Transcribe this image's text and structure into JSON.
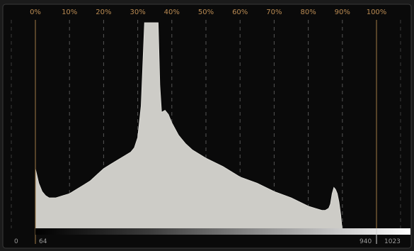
{
  "histogram": {
    "title": "",
    "percent_labels": [
      "0%",
      "10%",
      "20%",
      "30%",
      "40%",
      "50%",
      "60%",
      "70%",
      "80%",
      "90%",
      "100%"
    ],
    "code_labels": {
      "zero": "0",
      "black": "64",
      "white": "940",
      "max": "1023"
    },
    "colors": {
      "background": "#0a0a0a",
      "fill": "#cdccc7",
      "gridline": "#555555",
      "limit_line": "#a07a45",
      "label": "#b98a52",
      "code_label": "#9a9a9a"
    }
  },
  "chart_data": {
    "type": "area",
    "title": "",
    "xlabel": "",
    "ylabel": "",
    "x_unit": "percent",
    "xlim": [
      0,
      100
    ],
    "ylim": [
      0,
      100
    ],
    "grid": true,
    "legend": "none",
    "x": [
      0,
      1,
      2,
      3,
      4,
      5,
      6,
      8,
      10,
      12,
      14,
      16,
      18,
      20,
      22,
      24,
      26,
      28,
      29,
      30,
      31,
      32,
      32.5,
      33,
      36,
      36.5,
      37,
      38,
      39,
      40,
      42,
      44,
      46,
      50,
      55,
      60,
      65,
      70,
      75,
      80,
      82,
      84,
      85,
      86,
      86.5,
      87,
      87.5,
      88,
      88.5,
      89,
      89.5,
      90
    ],
    "y": [
      30,
      23,
      19,
      17,
      16,
      16,
      16,
      17,
      18,
      20,
      22,
      24,
      27,
      30,
      32,
      34,
      36,
      38,
      40,
      45,
      60,
      100,
      100,
      100,
      100,
      70,
      57,
      58,
      56,
      52,
      46,
      42,
      39,
      35,
      31,
      26,
      23,
      19,
      16,
      12,
      11,
      10,
      10,
      11,
      13,
      18,
      21,
      20,
      18,
      14,
      8,
      0
    ]
  }
}
